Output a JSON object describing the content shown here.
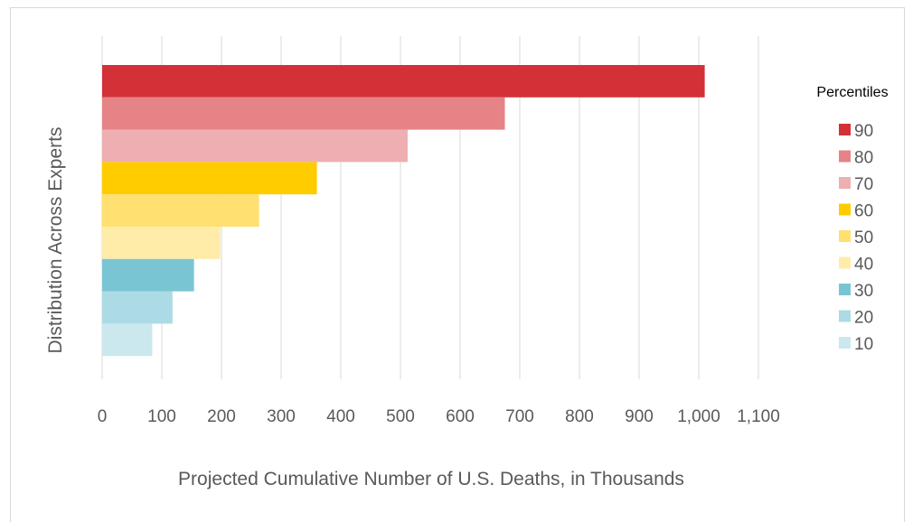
{
  "chart_data": {
    "type": "bar",
    "orientation": "horizontal",
    "xlabel": "Projected Cumulative Number of U.S. Deaths, in Thousands",
    "ylabel": "Distribution Across Experts",
    "xlim": [
      0,
      1100
    ],
    "x_ticks": [
      "0",
      "100",
      "200",
      "300",
      "400",
      "500",
      "600",
      "700",
      "800",
      "900",
      "1,000",
      "1,100"
    ],
    "grid": "vertical",
    "legend_title": "Percentiles",
    "legend_position": "right",
    "series": [
      {
        "name": "90",
        "value": 1010,
        "color": "#d43038"
      },
      {
        "name": "80",
        "value": 675,
        "color": "#e58387"
      },
      {
        "name": "70",
        "value": 512,
        "color": "#edafb1"
      },
      {
        "name": "60",
        "value": 360,
        "color": "#ffcc00"
      },
      {
        "name": "50",
        "value": 263,
        "color": "#ffe070"
      },
      {
        "name": "40",
        "value": 198,
        "color": "#ffeca8"
      },
      {
        "name": "30",
        "value": 154,
        "color": "#7ac5d3"
      },
      {
        "name": "20",
        "value": 118,
        "color": "#acdbe5"
      },
      {
        "name": "10",
        "value": 84,
        "color": "#cbe8ee"
      }
    ]
  }
}
